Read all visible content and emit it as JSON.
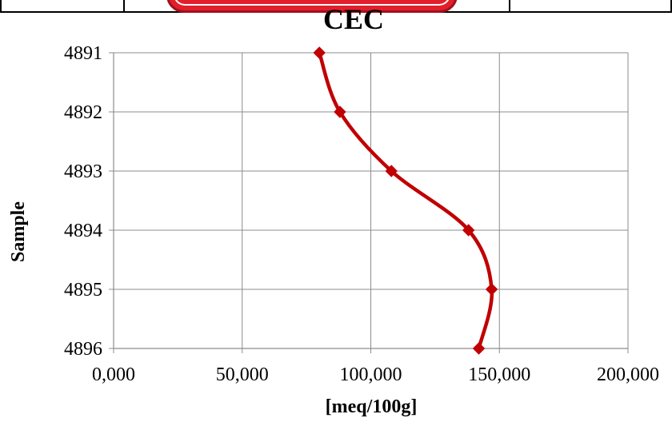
{
  "chart_data": {
    "type": "line",
    "title": "CEC",
    "xlabel": "[meq/100g]",
    "ylabel": "Sample",
    "xlim": [
      0,
      200
    ],
    "x_ticks": [
      "0,000",
      "50,000",
      "100,000",
      "150,000",
      "200,000"
    ],
    "y_categories": [
      "4891",
      "4892",
      "4893",
      "4894",
      "4895",
      "4896"
    ],
    "series": [
      {
        "color": "#c00000",
        "marker": "diamond",
        "points": [
          {
            "sample": "4891",
            "value": 80
          },
          {
            "sample": "4892",
            "value": 88
          },
          {
            "sample": "4893",
            "value": 108
          },
          {
            "sample": "4894",
            "value": 138
          },
          {
            "sample": "4895",
            "value": 147
          },
          {
            "sample": "4896",
            "value": 142
          }
        ]
      }
    ],
    "grid": true,
    "smooth": true
  }
}
